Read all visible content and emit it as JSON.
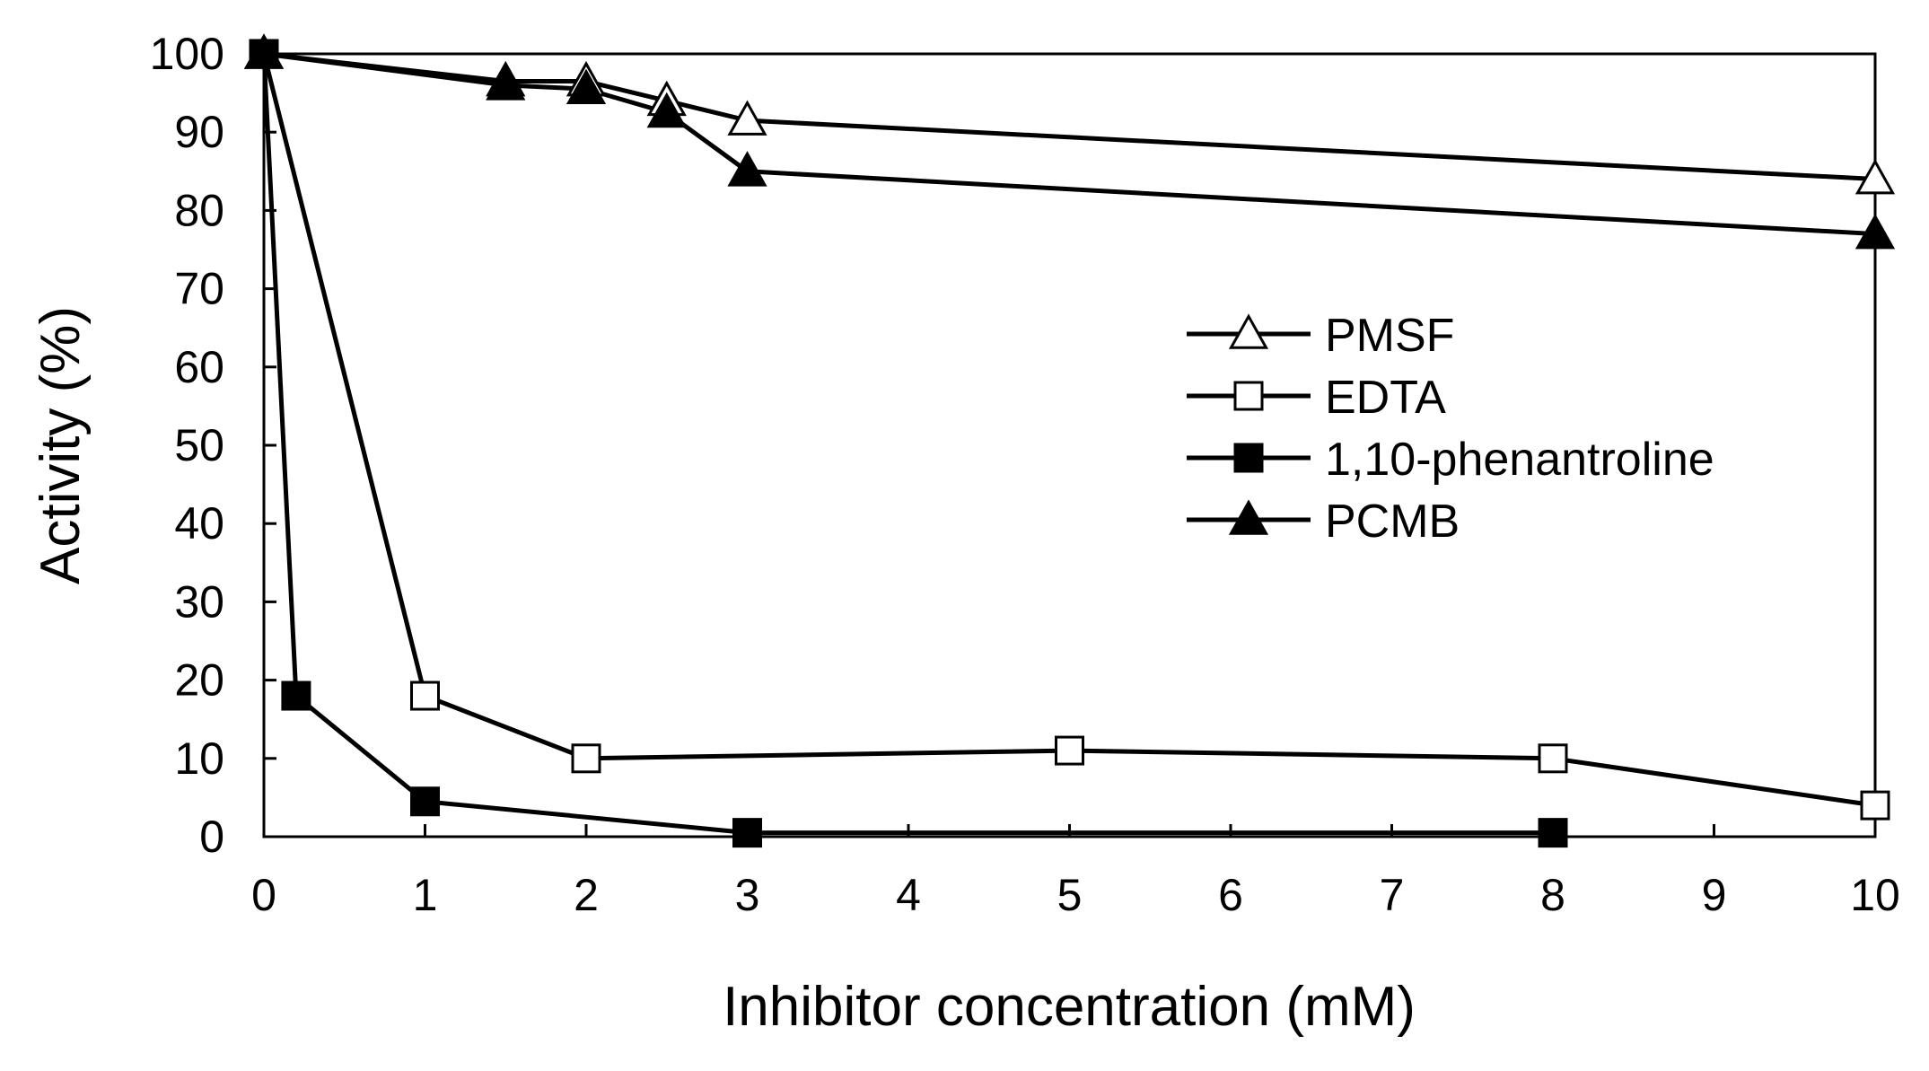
{
  "chart_data": {
    "type": "line",
    "xlabel": "Inhibitor concentration (mM)",
    "ylabel": "Activity (%)",
    "ylim": [
      0,
      100
    ],
    "x_tick_labels": [
      "0",
      "1",
      "2",
      "3",
      "4",
      "5",
      "6",
      "7",
      "8",
      "9",
      "10"
    ],
    "y_tick_labels": [
      "0",
      "10",
      "20",
      "30",
      "40",
      "50",
      "60",
      "70",
      "80",
      "90",
      "100"
    ],
    "grid": false,
    "legend_position": "center-right",
    "series": [
      {
        "name": "PMSF",
        "marker": "triangle-open",
        "x": [
          0,
          1.5,
          2,
          2.5,
          3,
          10
        ],
        "y": [
          100,
          96.5,
          96.5,
          94,
          91.5,
          84
        ]
      },
      {
        "name": "EDTA",
        "marker": "square-open",
        "x": [
          0,
          1,
          2,
          5,
          8,
          10
        ],
        "y": [
          100,
          18,
          10,
          11,
          10,
          4
        ]
      },
      {
        "name": "1,10-phenantroline",
        "marker": "square-filled",
        "x": [
          0,
          0.2,
          1,
          3,
          8
        ],
        "y": [
          100,
          18,
          4.5,
          0.5,
          0.5
        ]
      },
      {
        "name": "PCMB",
        "marker": "triangle-filled",
        "x": [
          0,
          1.5,
          2,
          2.5,
          3,
          10
        ],
        "y": [
          100,
          96,
          95.5,
          92.5,
          85,
          77
        ]
      }
    ]
  }
}
